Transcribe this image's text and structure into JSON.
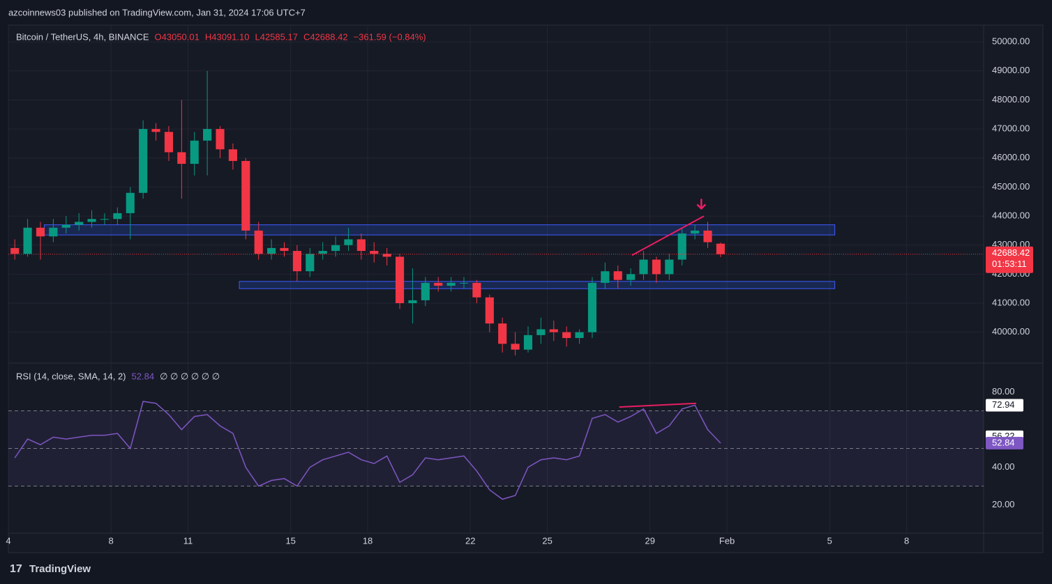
{
  "header": {
    "publisher": "azcoinnews03 published on TradingView.com, Jan 31, 2024 17:06 UTC+7",
    "brand": "TradingView"
  },
  "chart_data": {
    "type": "candlestick",
    "symbol": "Bitcoin / TetherUS, 4h, BINANCE",
    "ohlc_labels": [
      "O43050.01",
      "H43091.10",
      "L42585.17",
      "C42688.42"
    ],
    "change_label": "−361.59 (−0.84%)",
    "up_color": "#089981",
    "down_color": "#f23645",
    "candles": {
      "x": [
        4,
        4.5,
        5,
        5.5,
        6,
        6.5,
        7,
        7.5,
        8,
        8.5,
        9,
        9.5,
        10,
        10.5,
        11,
        11.5,
        12,
        12.5,
        13,
        13.5,
        14,
        14.5,
        15,
        15.5,
        16,
        16.5,
        17,
        17.5,
        18,
        18.5,
        19,
        19.5,
        20,
        20.5,
        21,
        21.5,
        22,
        22.5,
        23,
        23.5,
        24,
        24.5,
        25,
        25.5,
        26,
        26.5,
        27,
        27.5,
        28,
        28.5,
        29,
        29.5,
        30,
        30.5,
        31,
        31.5
      ],
      "open": [
        42900,
        42700,
        43600,
        43300,
        43600,
        43700,
        43800,
        43900,
        43900,
        44100,
        44800,
        47000,
        46900,
        46200,
        45800,
        46600,
        47000,
        46300,
        45900,
        43500,
        42700,
        42900,
        42800,
        42100,
        42700,
        42800,
        43000,
        43200,
        42800,
        42700,
        42600,
        41000,
        41100,
        41700,
        41600,
        41700,
        41700,
        41200,
        40300,
        39600,
        39400,
        39900,
        40100,
        40000,
        39800,
        40000,
        41700,
        42100,
        41800,
        42000,
        42500,
        42000,
        42500,
        43400,
        43500,
        43050.01
      ],
      "high": [
        43200,
        43900,
        43800,
        43900,
        44000,
        44100,
        44200,
        44100,
        44300,
        45000,
        47300,
        47200,
        47100,
        48000,
        46900,
        49000,
        47100,
        46500,
        46000,
        43800,
        43200,
        43100,
        43000,
        42900,
        43100,
        43300,
        43600,
        43400,
        43100,
        42900,
        42700,
        42200,
        41900,
        41900,
        41900,
        41900,
        41800,
        41300,
        40500,
        40000,
        40200,
        40500,
        40400,
        40200,
        40100,
        41900,
        42400,
        42300,
        42200,
        42800,
        42600,
        42700,
        43600,
        43700,
        43800,
        43091.1
      ],
      "low": [
        42500,
        42600,
        42500,
        43100,
        43400,
        43500,
        43600,
        43700,
        43700,
        43200,
        44600,
        46600,
        45900,
        44600,
        45400,
        45400,
        46000,
        45600,
        43200,
        42500,
        42500,
        42600,
        41750,
        41900,
        42500,
        42600,
        42800,
        42500,
        42400,
        42300,
        40800,
        40300,
        40900,
        41400,
        41400,
        41500,
        41000,
        40000,
        39300,
        39200,
        39300,
        39600,
        39700,
        39500,
        39600,
        39800,
        41500,
        41500,
        41600,
        41800,
        41700,
        41800,
        42300,
        43200,
        42900,
        42585.17
      ],
      "close": [
        42700,
        43600,
        43300,
        43600,
        43700,
        43800,
        43900,
        43900,
        44100,
        44800,
        47000,
        46900,
        46200,
        45800,
        46600,
        47000,
        46300,
        45900,
        43500,
        42700,
        42900,
        42800,
        42100,
        42700,
        42800,
        43000,
        43200,
        42800,
        42700,
        42600,
        41000,
        41100,
        41700,
        41600,
        41700,
        41700,
        41200,
        40300,
        39600,
        39400,
        39900,
        40100,
        40000,
        39800,
        40000,
        41700,
        42100,
        41800,
        42000,
        42500,
        42000,
        42500,
        43400,
        43500,
        43100,
        42688.42
      ]
    },
    "candle_span": 0.5,
    "xlim": [
      4,
      42
    ],
    "xticks": [
      4,
      8,
      11,
      15,
      18,
      22,
      25,
      29,
      {
        "value": 32,
        "label": "Feb"
      },
      {
        "value": 36,
        "label": "5"
      },
      {
        "value": 39,
        "label": "8"
      }
    ],
    "ylim": [
      38960,
      50580
    ],
    "yticks": [
      {
        "value": 40000,
        "label": "40000.00"
      },
      {
        "value": 41000,
        "label": "41000.00"
      },
      {
        "value": 42000,
        "label": "42000.00"
      },
      {
        "value": 43000,
        "label": "43000.00"
      },
      {
        "value": 44000,
        "label": "44000.00"
      },
      {
        "value": 45000,
        "label": "45000.00"
      },
      {
        "value": 46000,
        "label": "46000.00"
      },
      {
        "value": 47000,
        "label": "47000.00"
      },
      {
        "value": 48000,
        "label": "48000.00"
      },
      {
        "value": 49000,
        "label": "49000.00"
      },
      {
        "value": 50000,
        "label": "50000.00"
      }
    ],
    "last_price": 42688.42,
    "countdown": "01:53:11",
    "zones": [
      {
        "x": [
          5.4,
          36.2
        ],
        "y": [
          43350,
          43700
        ]
      },
      {
        "x": [
          13,
          36.2
        ],
        "y": [
          41500,
          41750
        ]
      }
    ],
    "trend_line": {
      "x": [
        28.3,
        31.1
      ],
      "y": [
        42650,
        44000
      ]
    },
    "arrow": {
      "x": 31,
      "y": 44400
    },
    "rsi": {
      "label": "RSI (14, close, SMA, 14, 2)",
      "value_label": 52.84,
      "empty_labels": "∅ ∅ ∅ ∅ ∅ ∅",
      "color": "#7e57c2",
      "values": [
        45,
        55,
        52,
        56,
        55,
        56,
        57,
        57,
        58,
        50,
        75,
        74,
        68,
        60,
        67,
        68,
        62,
        58,
        40,
        30,
        33,
        34,
        30,
        40,
        44,
        46,
        48,
        44,
        42,
        46,
        32,
        36,
        45,
        44,
        45,
        46,
        38,
        28,
        23,
        25,
        40,
        44,
        45,
        44,
        46,
        66,
        68,
        64,
        67,
        71,
        58,
        62,
        71,
        73,
        60,
        52.84
      ],
      "ylim": [
        5,
        95
      ],
      "yticks": [
        {
          "value": 20,
          "label": "20.00"
        },
        {
          "value": 40,
          "label": "40.00"
        },
        {
          "value": 80,
          "label": "80.00"
        }
      ],
      "bands": [
        30,
        50,
        70
      ],
      "tags": [
        72.94,
        56.22,
        52.84
      ],
      "trend_line": {
        "x": [
          27.8,
          30.8
        ],
        "y": [
          72,
          74
        ]
      }
    }
  }
}
